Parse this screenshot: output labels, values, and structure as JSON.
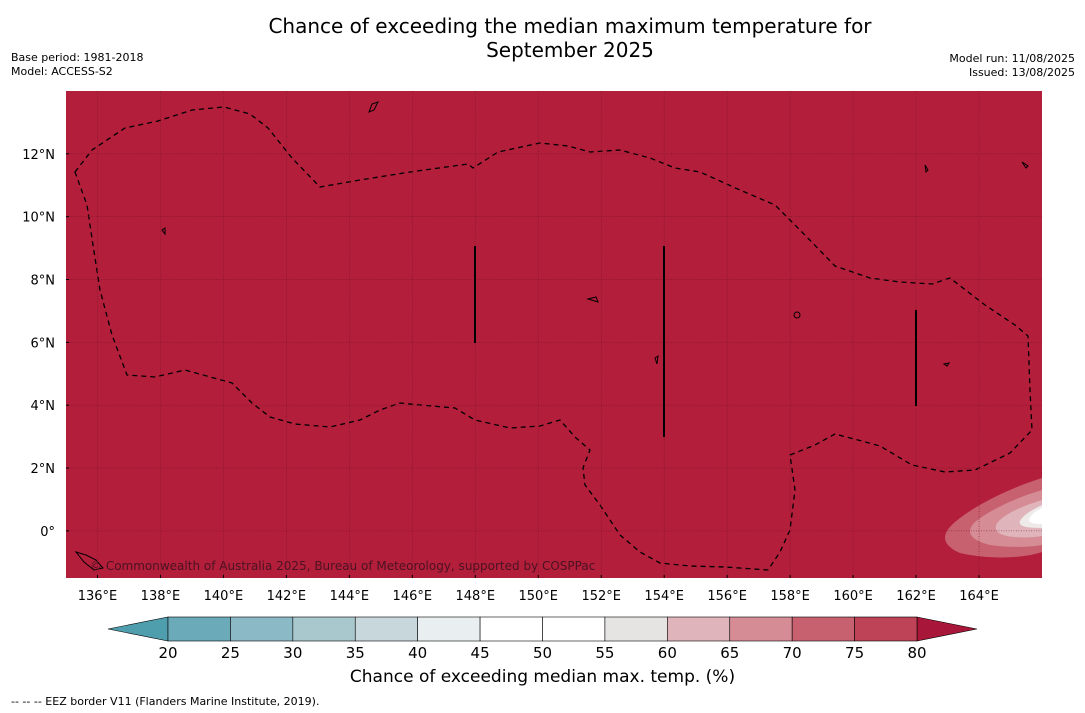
{
  "header": {
    "title_line1": "Chance of exceeding the median maximum temperature for",
    "title_line2": "September 2025",
    "base_period": "Base period: 1981-2018",
    "model": "Model: ACCESS-S2",
    "model_run": "Model run: 11/08/2025",
    "issued": "Issued: 13/08/2025"
  },
  "map": {
    "background_color": "#b31e3b",
    "copyright": "© Commonwealth of Australia 2025, Bureau of Meteorology, supported by COSPPac",
    "lon_ticks": [
      "136°E",
      "138°E",
      "140°E",
      "142°E",
      "144°E",
      "146°E",
      "148°E",
      "150°E",
      "152°E",
      "154°E",
      "156°E",
      "158°E",
      "160°E",
      "162°E",
      "164°E"
    ],
    "lat_ticks": [
      "12°N",
      "10°N",
      "8°N",
      "6°N",
      "4°N",
      "2°N",
      "0°"
    ],
    "lon_range": [
      135,
      166
    ],
    "lat_range": [
      -1.5,
      14
    ]
  },
  "colorbar": {
    "ticks": [
      "20",
      "25",
      "30",
      "35",
      "40",
      "45",
      "50",
      "55",
      "60",
      "65",
      "70",
      "75",
      "80"
    ],
    "colors": [
      "#6aaab9",
      "#8bb9c6",
      "#a9c8ce",
      "#c8d7dc",
      "#e9eff1",
      "#ffffff",
      "#ffffff",
      "#e6e3e3",
      "#dfb5bb",
      "#d58c95",
      "#c8616f",
      "#be4356"
    ],
    "under_color": "#4f9eae",
    "over_color": "#a8173a",
    "label": "Chance of exceeding median max. temp. (%)"
  },
  "footer": {
    "eez_legend": "--  --  -- EEZ border V11 (Flanders Marine Institute, 2019)."
  }
}
